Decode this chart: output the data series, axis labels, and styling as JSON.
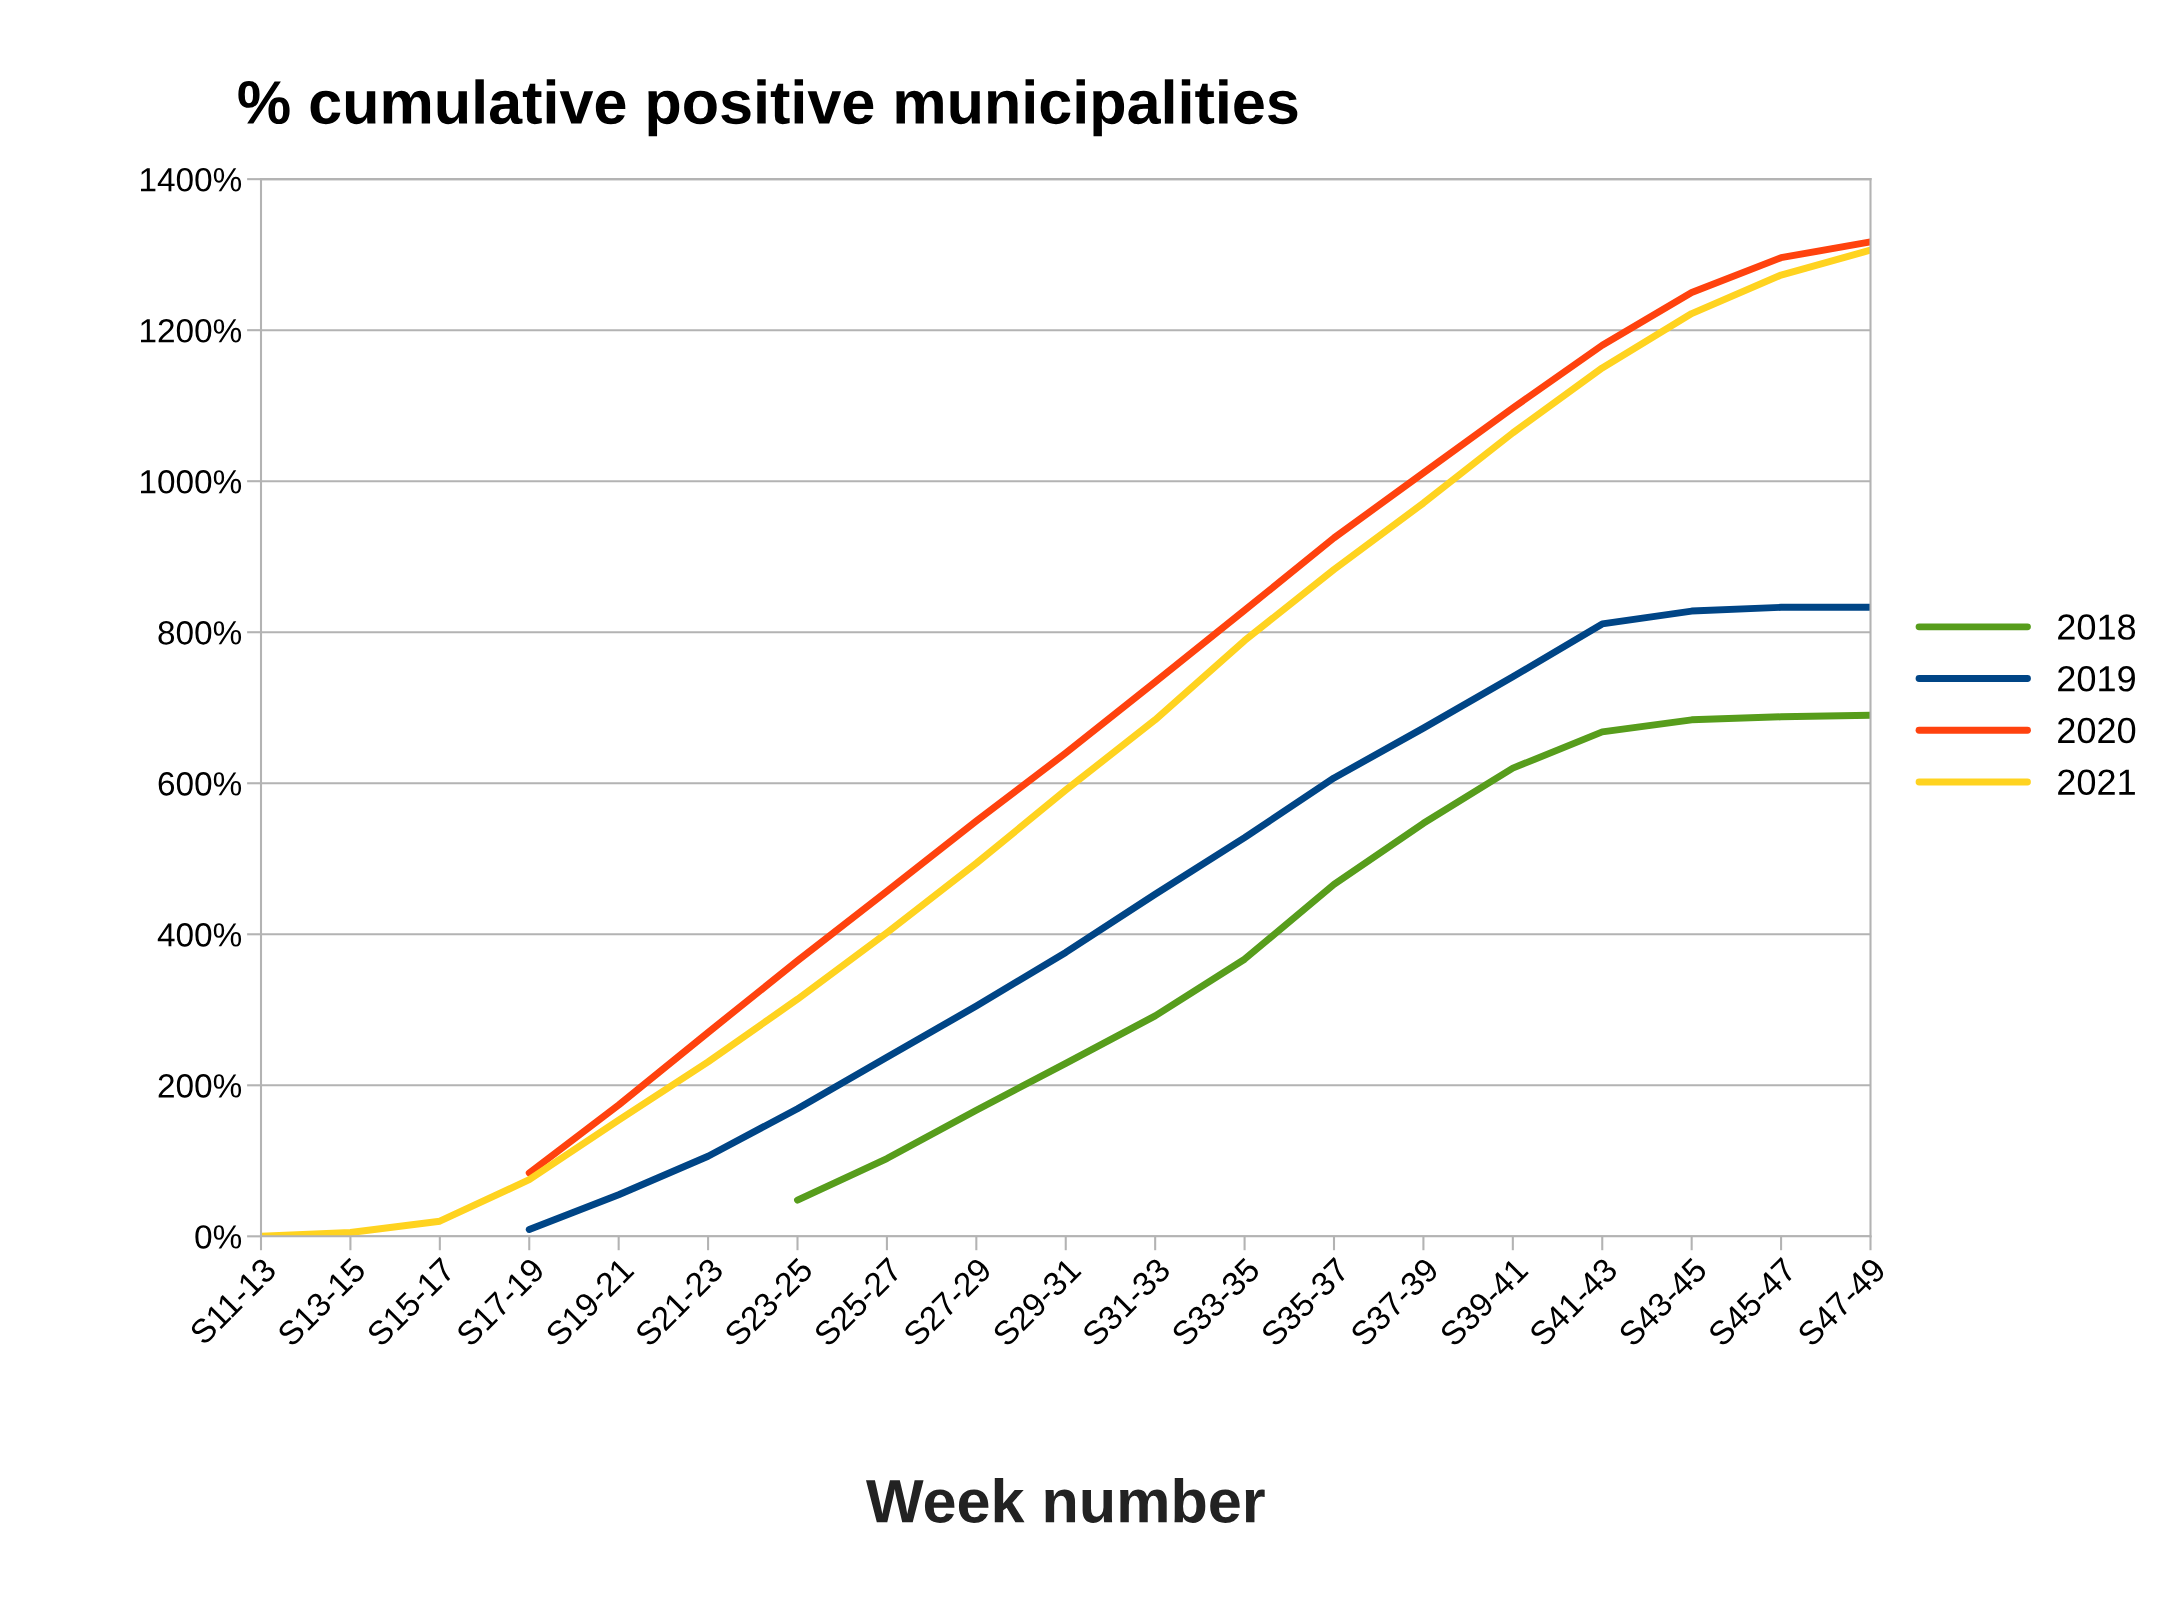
{
  "chart_data": {
    "type": "line",
    "title": "% cumulative positive municipalities",
    "xlabel": "Week number",
    "categories": [
      "S11-13",
      "S13-15",
      "S15-17",
      "S17-19",
      "S19-21",
      "S21-23",
      "S23-25",
      "S25-27",
      "S27-29",
      "S29-31",
      "S31-33",
      "S33-35",
      "S35-37",
      "S37-39",
      "S39-41",
      "S41-43",
      "S43-45",
      "S45-47",
      "S47-49"
    ],
    "series": [
      {
        "name": "2018",
        "color": "#579d1c",
        "values": [
          null,
          null,
          null,
          null,
          null,
          null,
          48,
          103,
          167,
          229,
          292,
          367,
          466,
          547,
          620,
          668,
          684,
          688,
          690
        ]
      },
      {
        "name": "2019",
        "color": "#004586",
        "values": [
          null,
          null,
          null,
          9,
          55,
          106,
          169,
          237,
          305,
          376,
          453,
          528,
          607,
          673,
          741,
          811,
          828,
          833,
          833
        ]
      },
      {
        "name": "2020",
        "color": "#ff420e",
        "values": [
          null,
          null,
          null,
          84,
          174,
          270,
          365,
          457,
          550,
          640,
          734,
          829,
          925,
          1011,
          1097,
          1180,
          1250,
          1296,
          1317
        ]
      },
      {
        "name": "2021",
        "color": "#ffd320",
        "values": [
          0,
          5,
          20,
          75,
          154,
          231,
          314,
          402,
          494,
          591,
          684,
          789,
          883,
          971,
          1064,
          1150,
          1222,
          1273,
          1306
        ]
      }
    ],
    "ylim": [
      0,
      1400
    ],
    "yticks": [
      {
        "value": 0,
        "label": "0%"
      },
      {
        "value": 200,
        "label": "200%"
      },
      {
        "value": 400,
        "label": "400%"
      },
      {
        "value": 600,
        "label": "600%"
      },
      {
        "value": 800,
        "label": "800%"
      },
      {
        "value": 1000,
        "label": "1000%"
      },
      {
        "value": 1200,
        "label": "1200%"
      },
      {
        "value": 1400,
        "label": "1400%"
      }
    ],
    "grid": "y",
    "legend": "right",
    "marker": "none",
    "line_style": "solid"
  }
}
